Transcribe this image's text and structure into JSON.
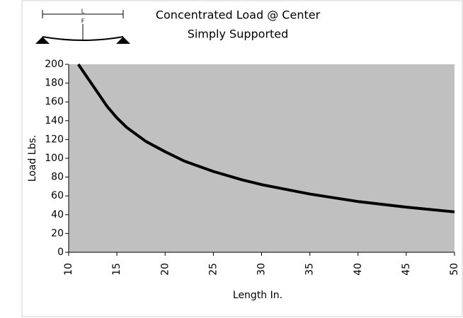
{
  "chart_data": {
    "type": "line",
    "title": "Concentrated Load @ Center",
    "subtitle": "Simply Supported",
    "xlabel": "Length In.",
    "ylabel": "Load Lbs.",
    "x": [
      11,
      12,
      13,
      14,
      15,
      16,
      18,
      20,
      22,
      25,
      28,
      30,
      35,
      40,
      45,
      50
    ],
    "series": [
      {
        "name": "Load",
        "color": "#000000",
        "values": [
          200,
          185,
          170,
          155,
          143,
          133,
          118,
          107,
          97,
          86,
          77,
          72,
          62,
          54,
          48,
          43
        ]
      }
    ],
    "xlim": [
      10,
      50
    ],
    "xticks": [
      10,
      15,
      20,
      25,
      30,
      35,
      40,
      45,
      50
    ],
    "ylim": [
      0,
      200
    ],
    "yticks": [
      0,
      20,
      40,
      60,
      80,
      100,
      120,
      140,
      160,
      180,
      200
    ],
    "plot_background": "#c0c0c0"
  },
  "diagram_labels": {
    "length": "L",
    "force": "F"
  }
}
